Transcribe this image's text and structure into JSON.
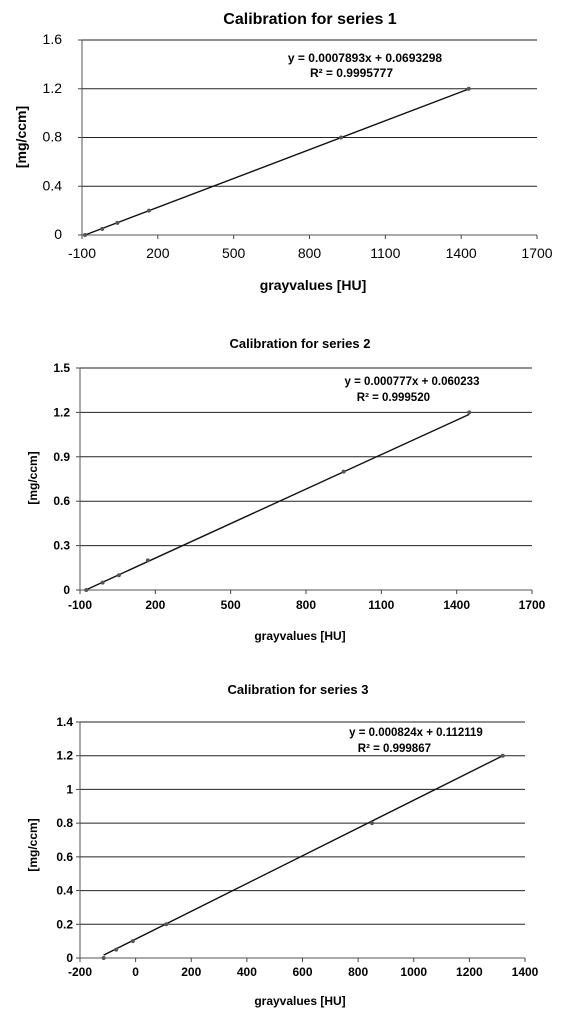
{
  "chart_data": [
    {
      "type": "scatter",
      "title": "Calibration for series 1",
      "xlabel": "grayvalues [HU]",
      "ylabel": "[mg/ccm]",
      "xlim": [
        -100,
        1700
      ],
      "ylim": [
        0,
        1.6
      ],
      "xticks": [
        "-100",
        "200",
        "500",
        "800",
        "1100",
        "1400",
        "1700"
      ],
      "yticks": [
        "0",
        "0.4",
        "0.8",
        "1.2",
        "1.6"
      ],
      "grid": "horizontal",
      "trendline": {
        "equation": "y = 0.0007893x + 0.0693298",
        "r2": "R² = 0.9995777",
        "slope": 0.0007893,
        "intercept": 0.0693298
      },
      "series": [
        {
          "x": [
            -88,
            -20,
            40,
            165,
            925,
            1430
          ],
          "y": [
            0,
            0.05,
            0.1,
            0.2,
            0.8,
            1.2
          ]
        }
      ]
    },
    {
      "type": "scatter",
      "title": "Calibration for series 2",
      "xlabel": "grayvalues [HU]",
      "ylabel": "[mg/ccm]",
      "xlim": [
        -100,
        1700
      ],
      "ylim": [
        0,
        1.5
      ],
      "xticks": [
        "-100",
        "200",
        "500",
        "800",
        "1100",
        "1400",
        "1700"
      ],
      "yticks": [
        "0",
        "0.3",
        "0.6",
        "0.9",
        "1.2",
        "1.5"
      ],
      "grid": "horizontal",
      "trendline": {
        "equation": "y = 0.000777x + 0.060233",
        "r2": "R² = 0.999520",
        "slope": 0.000777,
        "intercept": 0.060233
      },
      "series": [
        {
          "x": [
            -75,
            -10,
            55,
            170,
            950,
            1450
          ],
          "y": [
            0,
            0.05,
            0.1,
            0.2,
            0.8,
            1.2
          ]
        }
      ]
    },
    {
      "type": "scatter",
      "title": "Calibration for series 3",
      "xlabel": "grayvalues [HU]",
      "ylabel": "[mg/ccm]",
      "xlim": [
        -200,
        1400
      ],
      "ylim": [
        0,
        1.4
      ],
      "xticks": [
        "-200",
        "0",
        "200",
        "400",
        "600",
        "800",
        "1000",
        "1200",
        "1400"
      ],
      "yticks": [
        "0",
        "0.2",
        "0.4",
        "0.6",
        "0.8",
        "1",
        "1.2",
        "1.4"
      ],
      "grid": "horizontal",
      "trendline": {
        "equation": "y = 0.000824x + 0.112119",
        "r2": "R² = 0.999867",
        "slope": 0.000824,
        "intercept": 0.112119
      },
      "series": [
        {
          "x": [
            -115,
            -70,
            -10,
            110,
            850,
            1320
          ],
          "y": [
            0,
            0.05,
            0.1,
            0.2,
            0.8,
            1.2
          ]
        }
      ]
    }
  ]
}
